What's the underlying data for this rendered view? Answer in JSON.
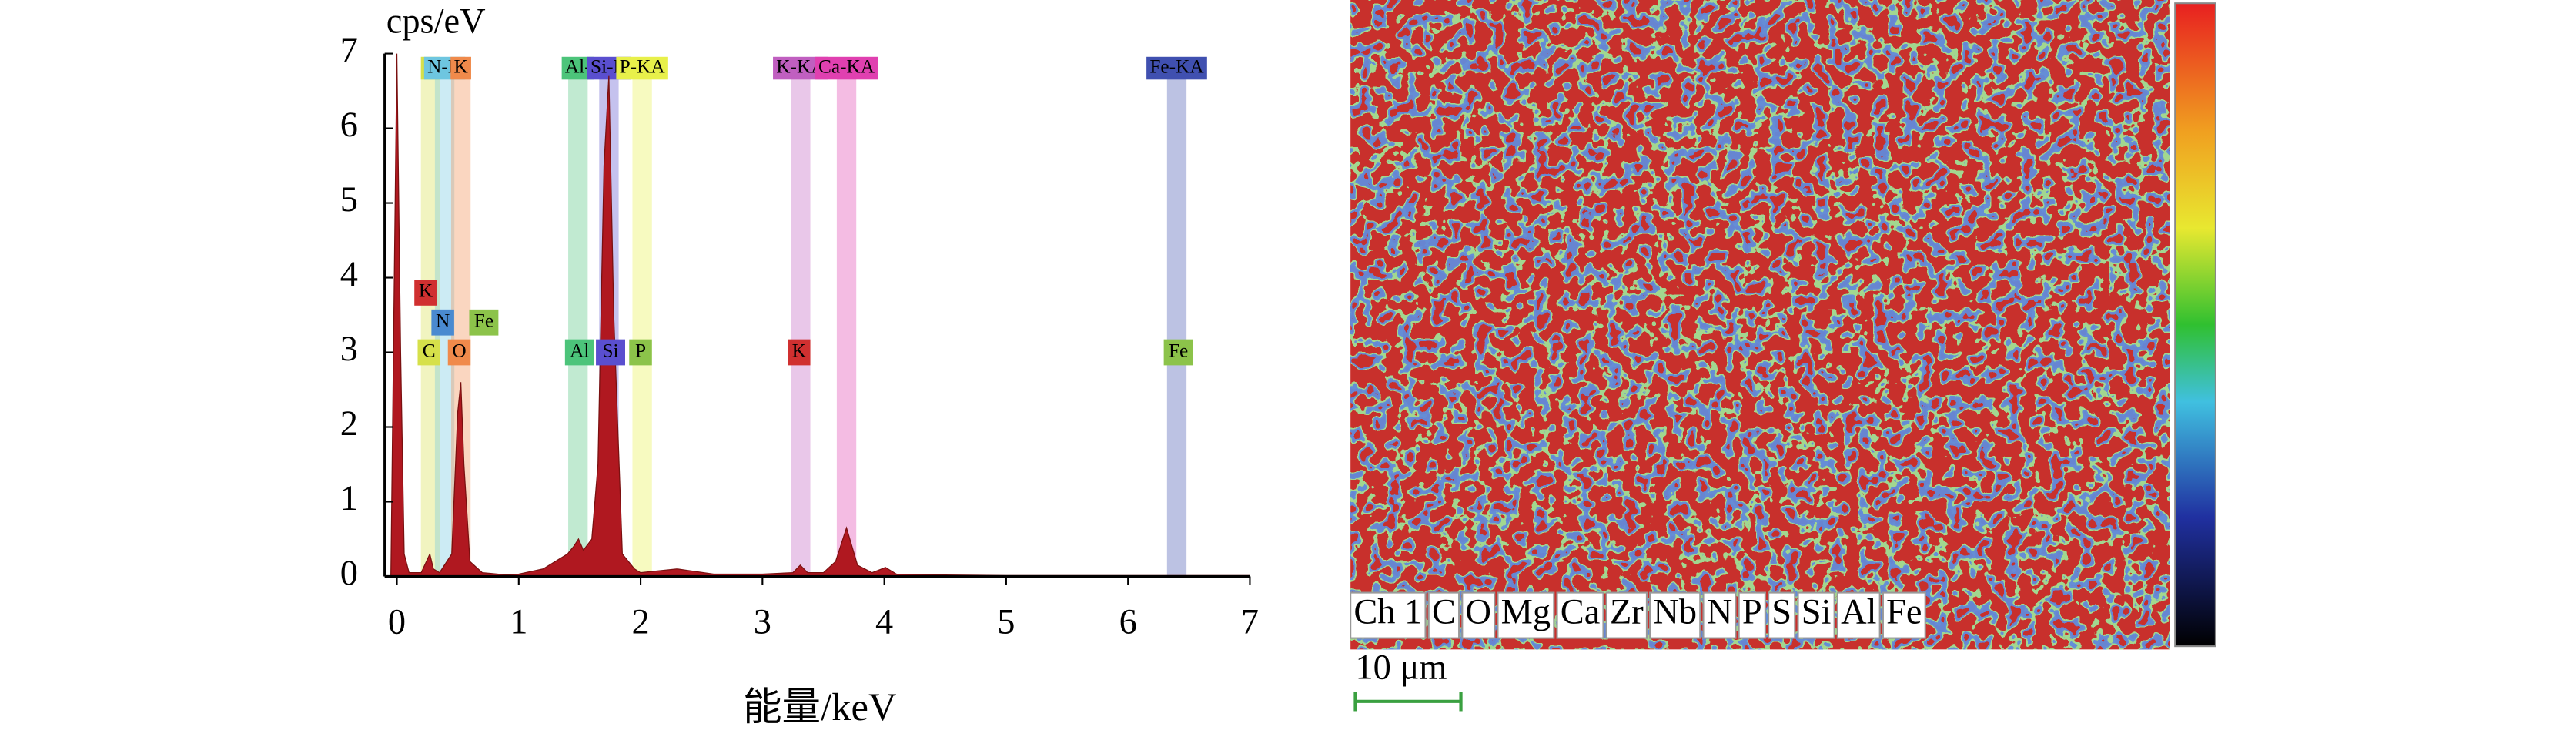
{
  "chart_data": {
    "type": "area",
    "y_unit_label": "cps/eV",
    "x_axis_label": "能量/keV",
    "color": "#b01820",
    "x": [
      -0.05,
      0,
      0.03,
      0.06,
      0.1,
      0.2,
      0.27,
      0.3,
      0.35,
      0.45,
      0.5,
      0.525,
      0.55,
      0.6,
      0.7,
      0.9,
      1.0,
      1.2,
      1.3,
      1.4,
      1.45,
      1.49,
      1.53,
      1.6,
      1.65,
      1.7,
      1.74,
      1.78,
      1.85,
      1.95,
      2.0,
      2.3,
      2.6,
      3.0,
      3.25,
      3.31,
      3.37,
      3.5,
      3.6,
      3.69,
      3.78,
      3.9,
      4.01,
      4.1,
      4.5,
      5,
      6,
      7
    ],
    "values": [
      0,
      7,
      3,
      0.3,
      0.05,
      0.05,
      0.3,
      0.1,
      0.05,
      0.3,
      2.2,
      2.6,
      1.5,
      0.2,
      0.05,
      0.02,
      0.03,
      0.1,
      0.2,
      0.3,
      0.4,
      0.5,
      0.35,
      0.5,
      1.5,
      5.5,
      6.7,
      3.5,
      0.3,
      0.1,
      0.05,
      0.1,
      0.03,
      0.03,
      0.05,
      0.15,
      0.05,
      0.05,
      0.2,
      0.65,
      0.15,
      0.05,
      0.12,
      0.03,
      0.02,
      0.01,
      0.01,
      0.01
    ],
    "xlim": [
      -0.1,
      7
    ],
    "ylim": [
      0,
      7
    ],
    "xticks": [
      0,
      1,
      2,
      3,
      4,
      5,
      6,
      7
    ],
    "yticks": [
      0,
      1,
      2,
      3,
      4,
      5,
      6,
      7
    ],
    "lines": [
      {
        "label": "C",
        "x": 0.277,
        "color": "#d6e04a"
      },
      {
        "label": "N-K",
        "x": 0.392,
        "color": "#6ec6e0"
      },
      {
        "label": "K",
        "x": 0.525,
        "color": "#f08a4b"
      },
      {
        "label": "Al-",
        "x": 1.486,
        "color": "#4cc47a"
      },
      {
        "label": "Si-K",
        "x": 1.74,
        "color": "#5a4fcf"
      },
      {
        "label": "P-KA",
        "x": 2.013,
        "color": "#e8f04a"
      },
      {
        "label": "K-KA",
        "x": 3.313,
        "color": "#c05fc0"
      },
      {
        "label": "Ca-KA",
        "x": 3.69,
        "color": "#e040b0"
      },
      {
        "label": "Fe-KA",
        "x": 6.4,
        "color": "#4050b0"
      }
    ],
    "markers": [
      {
        "label": "K",
        "x": 0.25,
        "y": 3.8,
        "color": "#d03030"
      },
      {
        "label": "N",
        "x": 0.39,
        "y": 3.4,
        "color": "#4a8ad0"
      },
      {
        "label": "Fe",
        "x": 0.7,
        "y": 3.4,
        "color": "#8cc34a"
      },
      {
        "label": "C",
        "x": 0.277,
        "y": 3.0,
        "color": "#d6e04a"
      },
      {
        "label": "O",
        "x": 0.525,
        "y": 3.0,
        "color": "#f08a4b"
      },
      {
        "label": "Al",
        "x": 1.486,
        "y": 3.0,
        "color": "#4cc47a"
      },
      {
        "label": "Si",
        "x": 1.74,
        "y": 3.0,
        "color": "#5a4fcf"
      },
      {
        "label": "P",
        "x": 2.013,
        "y": 3.0,
        "color": "#8cc34a"
      },
      {
        "label": "K",
        "x": 3.313,
        "y": 3.0,
        "color": "#d03030"
      },
      {
        "label": "Fe",
        "x": 6.4,
        "y": 3.0,
        "color": "#8cc34a"
      }
    ]
  },
  "element_map": {
    "channels": [
      "Ch 1",
      "C",
      "O",
      "Mg",
      "Ca",
      "Zr",
      "Nb",
      "N",
      "P",
      "S",
      "Si",
      "Al",
      "Fe"
    ],
    "scale_bar": "10 μm"
  }
}
